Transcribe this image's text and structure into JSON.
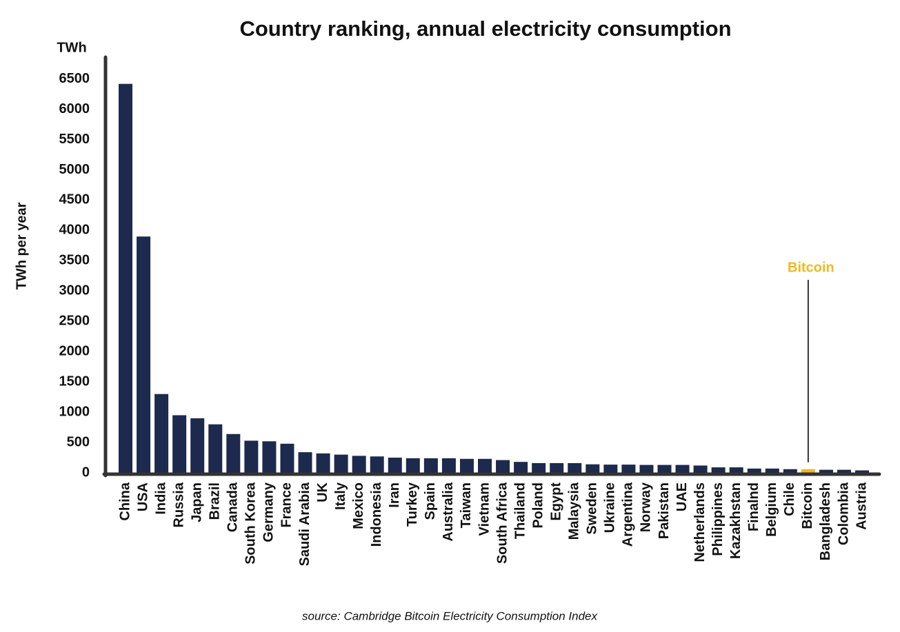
{
  "chart_data": {
    "type": "bar",
    "title": "Country ranking, annual electricity consumption",
    "unit_label": "TWh",
    "y_label": "TWh per year",
    "source": "source: Cambridge Bitcoin Electricity Consumption Index",
    "categories": [
      "China",
      "USA",
      "India",
      "Russia",
      "Japan",
      "Brazil",
      "Canada",
      "South Korea",
      "Germany",
      "France",
      "Saudi Arabia",
      "UK",
      "Italy",
      "Mexico",
      "Indonesia",
      "Iran",
      "Turkey",
      "Spain",
      "Australia",
      "Taiwan",
      "Vietnam",
      "South Africa",
      "Thailand",
      "Poland",
      "Egypt",
      "Malaysia",
      "Sweden",
      "Ukraine",
      "Argentina",
      "Norway",
      "Pakistan",
      "UAE",
      "Netherlands",
      "Philippines",
      "Kazakhstan",
      "Finalnd",
      "Belgium",
      "Chile",
      "Bitcoin",
      "Bangladesh",
      "Colombia",
      "Austria"
    ],
    "values": [
      6420,
      3900,
      1300,
      950,
      900,
      800,
      640,
      530,
      520,
      480,
      340,
      320,
      300,
      280,
      270,
      250,
      240,
      240,
      240,
      230,
      230,
      210,
      180,
      160,
      160,
      160,
      140,
      135,
      135,
      130,
      130,
      130,
      120,
      90,
      90,
      70,
      70,
      60,
      60,
      50,
      50,
      40
    ],
    "color": "#1d2a4d",
    "annotation": {
      "text": "Bitcoin",
      "color": "#f0b922"
    },
    "ylim": [
      0,
      6860
    ],
    "yticks": [
      0,
      500,
      1000,
      1500,
      2000,
      2500,
      3000,
      3500,
      4000,
      4500,
      5000,
      5500,
      6000,
      6500
    ]
  }
}
